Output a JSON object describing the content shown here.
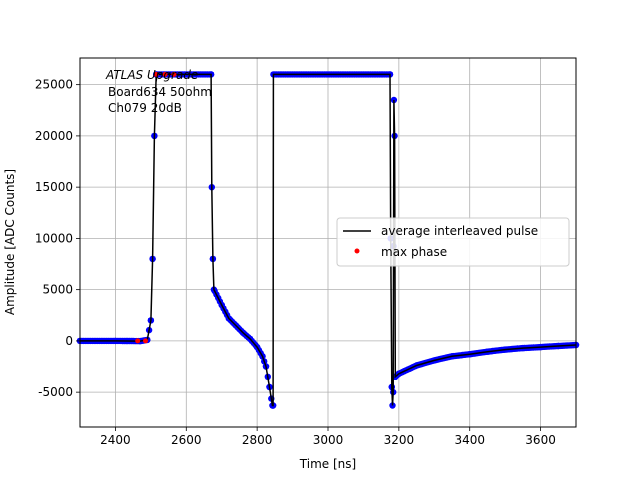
{
  "chart_data": {
    "type": "line",
    "title": "",
    "xlabel": "Time [ns]",
    "ylabel": "Amplitude [ADC Counts]",
    "xlim": [
      2300,
      3700
    ],
    "ylim": [
      -8400,
      27600
    ],
    "grid": true,
    "x_ticks": [
      2400,
      2600,
      2800,
      3000,
      3200,
      3400,
      3600
    ],
    "y_ticks": [
      -5000,
      0,
      5000,
      10000,
      15000,
      20000,
      25000
    ],
    "annotation": {
      "line1": "ATLAS Upgrade",
      "line2": "Board634 50ohm",
      "line3": "Ch079 20dB"
    },
    "legend": {
      "placement": "center-right",
      "entries": [
        "average interleaved pulse",
        "max phase"
      ]
    },
    "series": [
      {
        "name": "average interleaved pulse",
        "color": "#000000",
        "points": [
          [
            2300,
            0
          ],
          [
            2400,
            0
          ],
          [
            2470,
            -20
          ],
          [
            2490,
            100
          ],
          [
            2500,
            2000
          ],
          [
            2505,
            8000
          ],
          [
            2510,
            20000
          ],
          [
            2515,
            26000
          ],
          [
            2670,
            26000
          ],
          [
            2672,
            15000
          ],
          [
            2675,
            8000
          ],
          [
            2678,
            5000
          ],
          [
            2700,
            3500
          ],
          [
            2720,
            2200
          ],
          [
            2740,
            1500
          ],
          [
            2760,
            800
          ],
          [
            2780,
            200
          ],
          [
            2800,
            -600
          ],
          [
            2815,
            -1500
          ],
          [
            2825,
            -2500
          ],
          [
            2835,
            -4500
          ],
          [
            2843,
            -6300
          ],
          [
            2845,
            -6300
          ],
          [
            2846,
            26000
          ],
          [
            3175,
            26000
          ],
          [
            3177,
            10000
          ],
          [
            3180,
            -4500
          ],
          [
            3182,
            -6300
          ],
          [
            3184,
            -5000
          ],
          [
            3186,
            23500
          ],
          [
            3188,
            20000
          ],
          [
            3190,
            -3500
          ],
          [
            3200,
            -3200
          ],
          [
            3250,
            -2400
          ],
          [
            3300,
            -1900
          ],
          [
            3350,
            -1500
          ],
          [
            3400,
            -1300
          ],
          [
            3450,
            -1050
          ],
          [
            3500,
            -850
          ],
          [
            3550,
            -700
          ],
          [
            3600,
            -600
          ],
          [
            3650,
            -500
          ],
          [
            3700,
            -400
          ]
        ]
      },
      {
        "name": "max phase",
        "color": "#ff0000",
        "points": [
          [
            2463,
            0
          ],
          [
            2485,
            0
          ],
          [
            2515,
            26000
          ],
          [
            2540,
            26000
          ],
          [
            2565,
            26000
          ]
        ]
      }
    ],
    "sample_marker_color": "#0000ff"
  }
}
